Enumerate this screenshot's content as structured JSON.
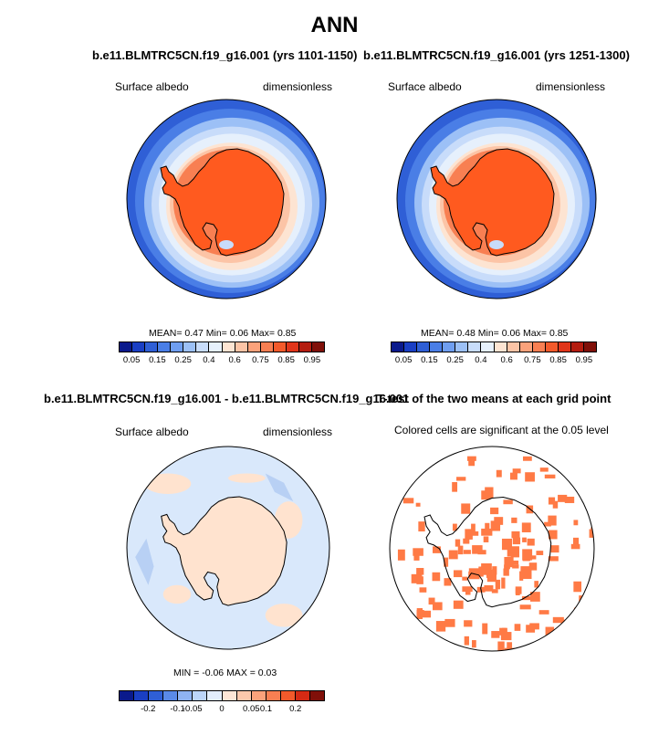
{
  "title": "ANN",
  "colors": {
    "ocean_blue": "#2f5fd6",
    "ice_orange": "#ff5a1f",
    "diff_light_blue": "#d9e8fb",
    "diff_peach": "#ffe3cf",
    "ttest_orange": "#ff7a45"
  },
  "panels": [
    {
      "id": "case1",
      "title": "b.e11.BLMTRC5CN.f19_g16.001 (yrs 1101-1150)",
      "left_label": "Surface albedo",
      "right_label": "dimensionless",
      "stats": "MEAN=   0.47  Min=   0.06  Max=   0.85"
    },
    {
      "id": "case2",
      "title": "b.e11.BLMTRC5CN.f19_g16.001 (yrs 1251-1300)",
      "left_label": "Surface albedo",
      "right_label": "dimensionless",
      "stats": "MEAN=   0.48  Min=   0.06  Max=   0.85"
    },
    {
      "id": "diff",
      "title": "b.e11.BLMTRC5CN.f19_g16.001 - b.e11.BLMTRC5CN.f19_g16.001",
      "left_label": "Surface albedo",
      "right_label": "dimensionless",
      "stats": "MIN =  -0.06 MAX =   0.03"
    },
    {
      "id": "ttest",
      "title": "T-test of the two means at each grid point",
      "subtitle": "Colored cells are significant at the 0.05 level"
    }
  ],
  "colorbars": {
    "albedo": {
      "colors": [
        "#0a1a8c",
        "#1a3fc4",
        "#2f5fd6",
        "#4a7ee6",
        "#6f9ef0",
        "#9cc0f6",
        "#c8dcfa",
        "#e6f0fc",
        "#fde4d2",
        "#fcc4a6",
        "#fba27b",
        "#f87f52",
        "#f35a2b",
        "#e0351a",
        "#b41d10",
        "#801009"
      ],
      "ticks": [
        {
          "label": "0.05",
          "pos": 1
        },
        {
          "label": "0.15",
          "pos": 3
        },
        {
          "label": "0.25",
          "pos": 5
        },
        {
          "label": "0.4",
          "pos": 7
        },
        {
          "label": "0.6",
          "pos": 9
        },
        {
          "label": "0.75",
          "pos": 11
        },
        {
          "label": "0.85",
          "pos": 13
        },
        {
          "label": "0.95",
          "pos": 15
        }
      ]
    },
    "diff": {
      "colors": [
        "#0a1a8c",
        "#1a3fc4",
        "#2f5fd6",
        "#5a8ae8",
        "#8fb3f2",
        "#bcd5f8",
        "#e3eefc",
        "#fde6d6",
        "#fcc8ac",
        "#fba27b",
        "#f87f52",
        "#f35a2b",
        "#d42a14",
        "#801009"
      ],
      "ticks": [
        {
          "label": "-0.2",
          "pos": 2
        },
        {
          "label": "-0.1",
          "pos": 4
        },
        {
          "label": "-0.05",
          "pos": 5
        },
        {
          "label": "0",
          "pos": 7
        },
        {
          "label": "0.05",
          "pos": 9
        },
        {
          "label": "0.1",
          "pos": 10
        },
        {
          "label": "0.2",
          "pos": 12
        }
      ]
    }
  },
  "chart_data": [
    {
      "type": "heatmap",
      "panel": "case1",
      "variable": "Surface albedo",
      "units": "dimensionless",
      "mean": 0.47,
      "min": 0.06,
      "max": 0.85
    },
    {
      "type": "heatmap",
      "panel": "case2",
      "variable": "Surface albedo",
      "units": "dimensionless",
      "mean": 0.48,
      "min": 0.06,
      "max": 0.85
    },
    {
      "type": "heatmap",
      "panel": "diff",
      "variable": "Surface albedo",
      "units": "dimensionless",
      "min": -0.06,
      "max": 0.03
    },
    {
      "type": "heatmap",
      "panel": "ttest",
      "significance_level": 0.05
    }
  ]
}
